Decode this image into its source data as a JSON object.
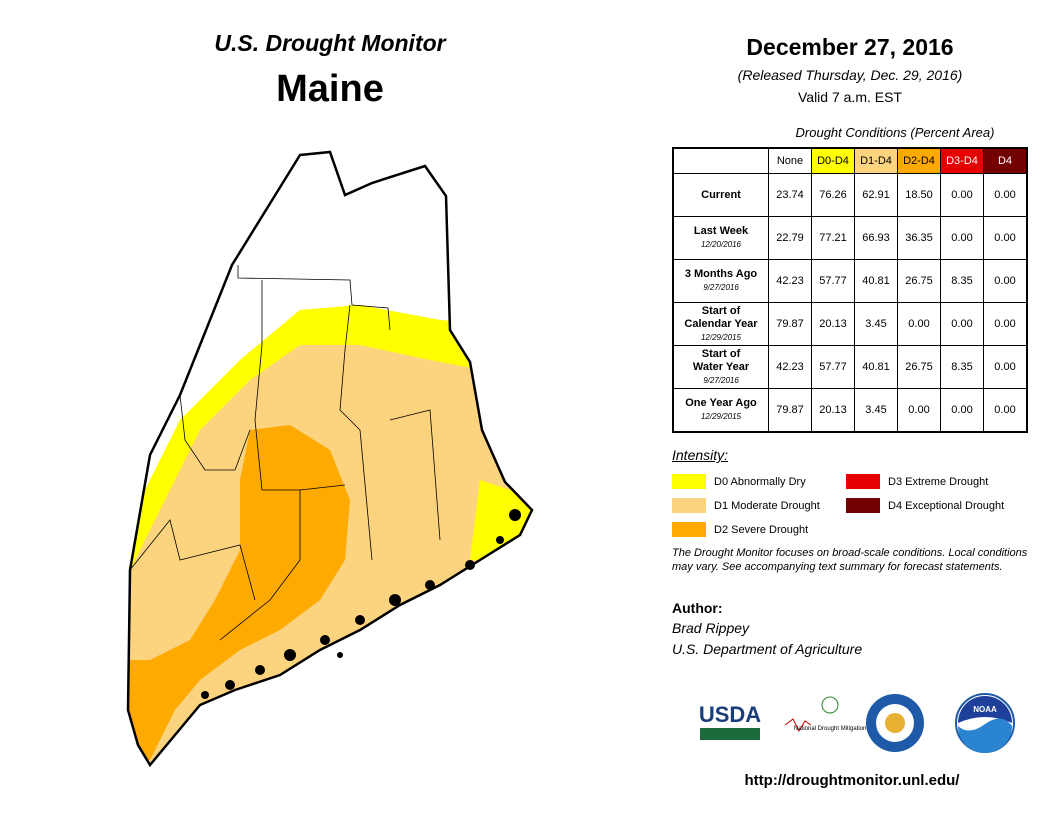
{
  "header": {
    "product": "U.S. Drought Monitor",
    "state": "Maine",
    "date": "December 27, 2016",
    "released": "(Released Thursday, Dec. 29, 2016)",
    "valid": "Valid 7 a.m. EST"
  },
  "table": {
    "caption": "Drought Conditions (Percent Area)",
    "columns": [
      {
        "label": "None",
        "color": "#ffffff",
        "text_color": "#000000"
      },
      {
        "label": "D0-D4",
        "color": "#ffff00",
        "text_color": "#000000"
      },
      {
        "label": "D1-D4",
        "color": "#fcd37f",
        "text_color": "#000000"
      },
      {
        "label": "D2-D4",
        "color": "#ffaa00",
        "text_color": "#000000"
      },
      {
        "label": "D3-D4",
        "color": "#e60000",
        "text_color": "#ffffff"
      },
      {
        "label": "D4",
        "color": "#730000",
        "text_color": "#ffffff"
      }
    ],
    "rows": [
      {
        "label": [
          "Current"
        ],
        "values": [
          "23.74",
          "76.26",
          "62.91",
          "18.50",
          "0.00",
          "0.00"
        ]
      },
      {
        "label": [
          "Last Week"
        ],
        "date": "12/20/2016",
        "values": [
          "22.79",
          "77.21",
          "66.93",
          "36.35",
          "0.00",
          "0.00"
        ]
      },
      {
        "label": [
          "3 Months Ago"
        ],
        "date": "9/27/2016",
        "values": [
          "42.23",
          "57.77",
          "40.81",
          "26.75",
          "8.35",
          "0.00"
        ]
      },
      {
        "label": [
          "Start of",
          "Calendar Year"
        ],
        "date": "12/29/2015",
        "values": [
          "79.87",
          "20.13",
          "3.45",
          "0.00",
          "0.00",
          "0.00"
        ]
      },
      {
        "label": [
          "Start of",
          "Water Year"
        ],
        "date": "9/27/2016",
        "values": [
          "42.23",
          "57.77",
          "40.81",
          "26.75",
          "8.35",
          "0.00"
        ]
      },
      {
        "label": [
          "One Year Ago"
        ],
        "date": "12/29/2015",
        "values": [
          "79.87",
          "20.13",
          "3.45",
          "0.00",
          "0.00",
          "0.00"
        ]
      }
    ]
  },
  "legend": {
    "title": "Intensity:",
    "items": [
      {
        "label": "D0 Abnormally Dry",
        "color": "#ffff00"
      },
      {
        "label": "D1 Moderate Drought",
        "color": "#fcd37f"
      },
      {
        "label": "D2 Severe Drought",
        "color": "#ffaa00"
      },
      {
        "label": "D3 Extreme Drought",
        "color": "#e60000"
      },
      {
        "label": "D4 Exceptional Drought",
        "color": "#730000"
      }
    ]
  },
  "note": "The Drought Monitor focuses on broad-scale conditions. Local conditions may vary. See accompanying text summary for forecast statements.",
  "author": {
    "heading": "Author:",
    "name": "Brad Rippey",
    "org": "U.S. Department of Agriculture"
  },
  "logos": {
    "usda": "USDA",
    "ndmc": "National Drought Mitigation Center",
    "noaa": "NOAA"
  },
  "url": "http://droughtmonitor.unl.edu/"
}
